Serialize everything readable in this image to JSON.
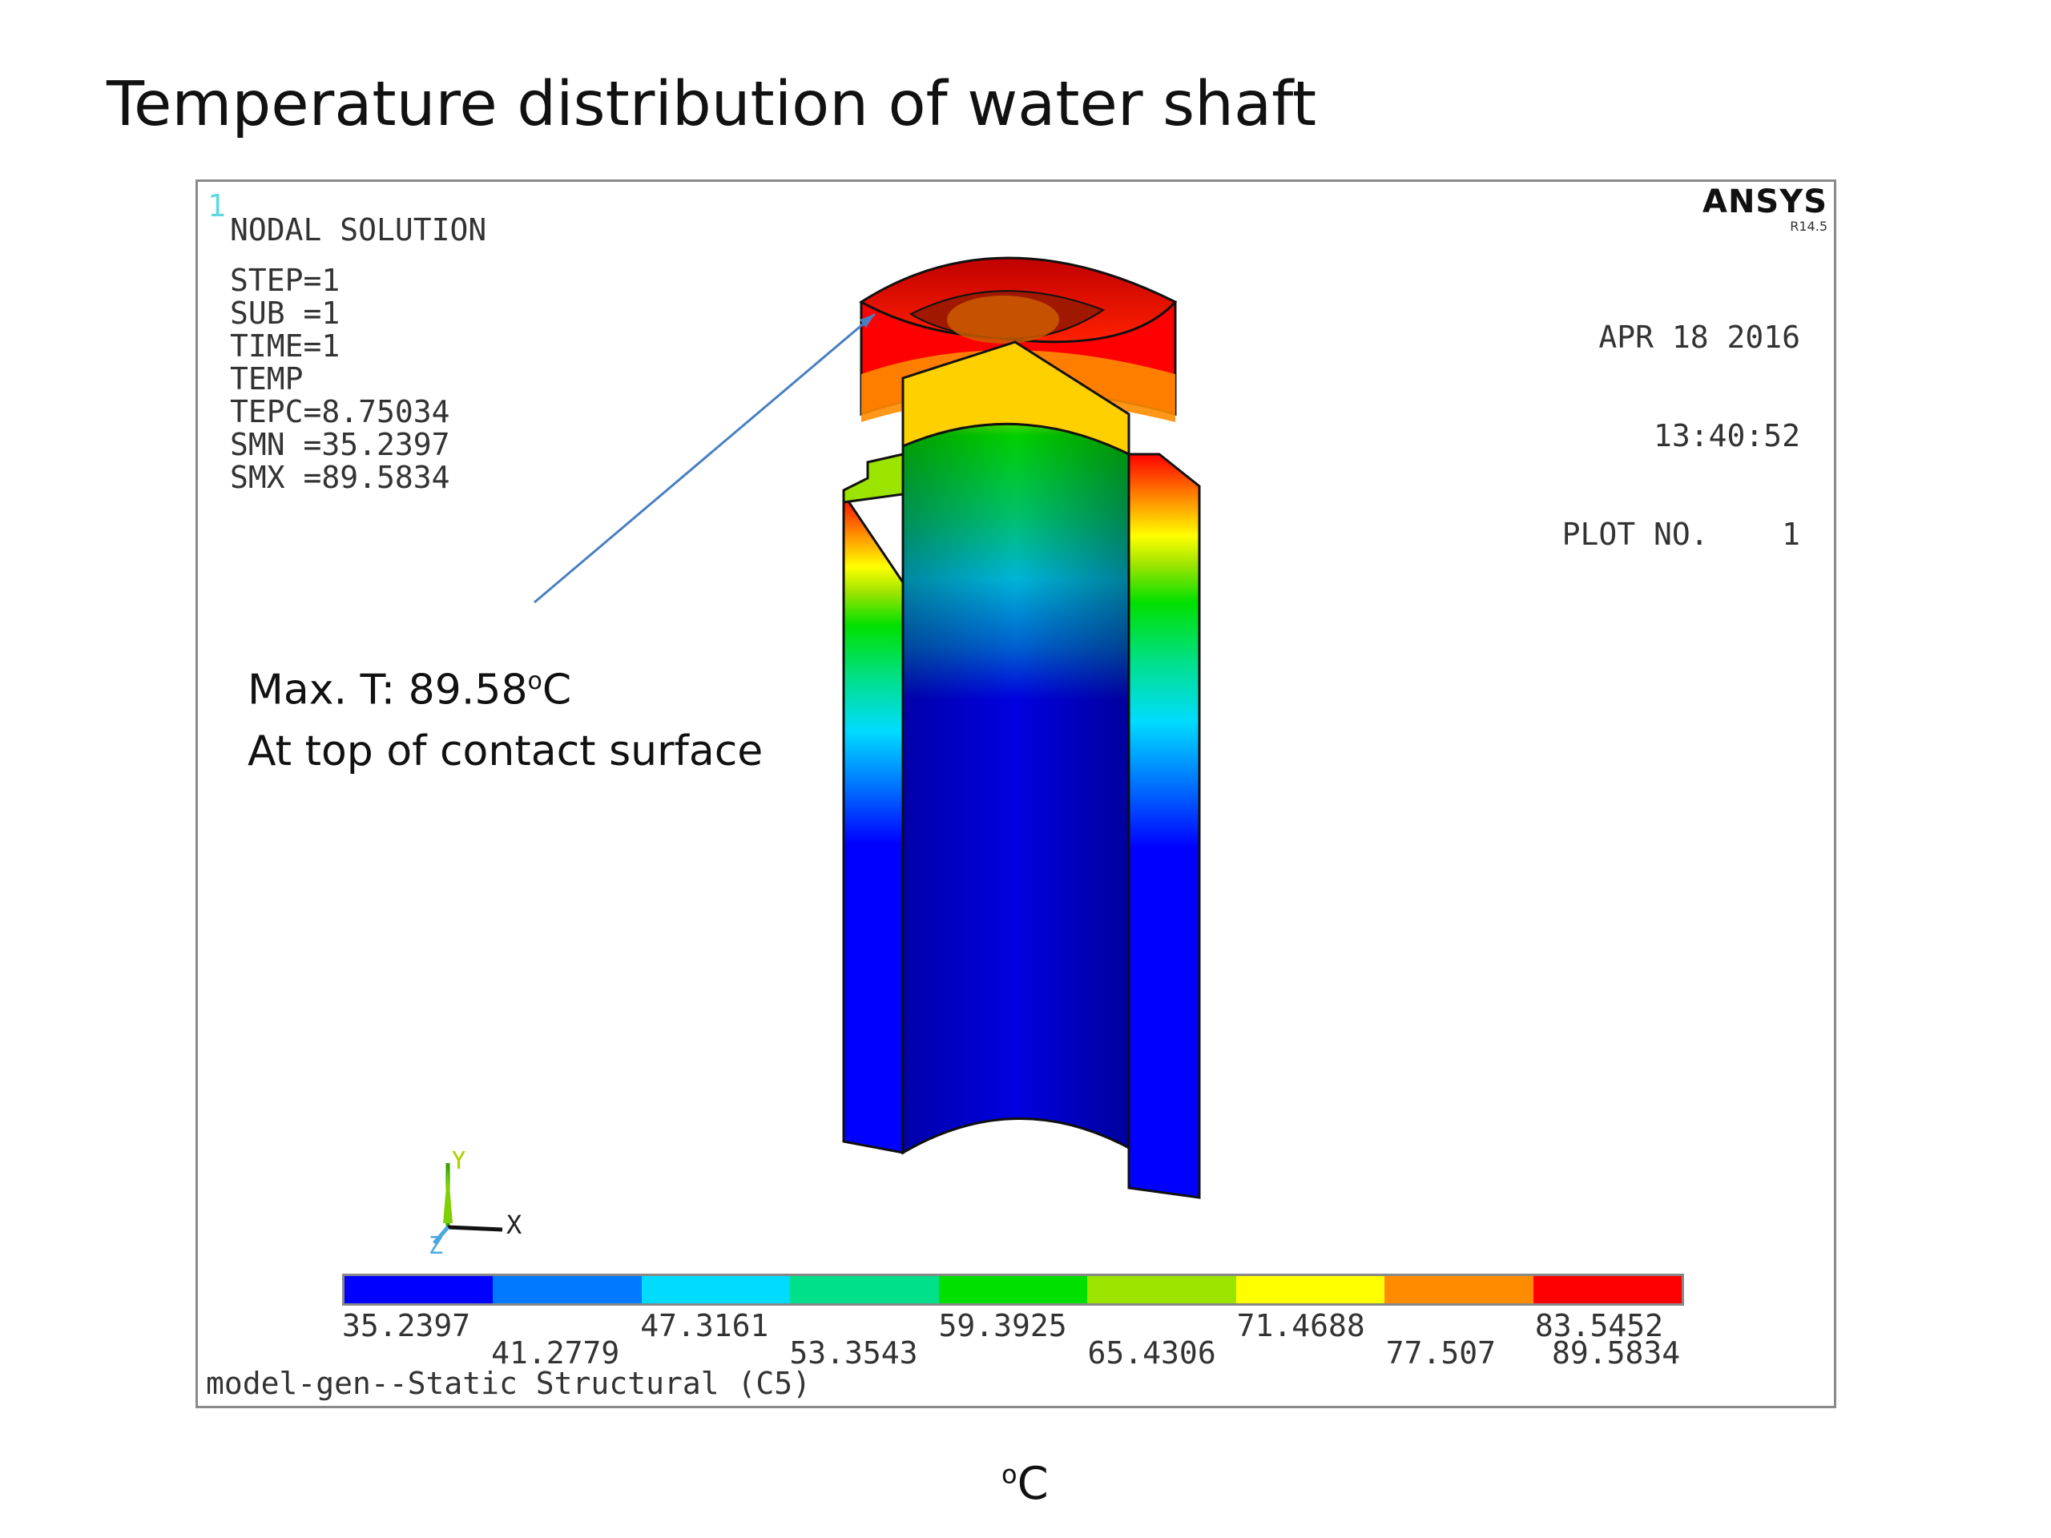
{
  "title": "Temperature distribution of water shaft",
  "plot": {
    "window_number": "1",
    "header": "NODAL SOLUTION",
    "info_lines": [
      "STEP=1",
      "SUB =1",
      "TIME=1",
      "TEMP",
      "TEPC=8.75034",
      "SMN =35.2397",
      "SMX =89.5834"
    ],
    "brand": "ANSYS",
    "version": "R14.5",
    "date": "APR 18 2016",
    "time": "13:40:52",
    "plot_label": "PLOT NO.",
    "plot_no": "1",
    "annotation_line1_prefix": "Max. T: 89.58",
    "annotation_line1_sup": "o",
    "annotation_line1_suffix": "C",
    "annotation_line2": "At top of contact surface",
    "axis_x": "X",
    "axis_y": "Y",
    "axis_z": "Z",
    "footer": "model-gen--Static Structural (C5)"
  },
  "colorbar": {
    "colors": [
      "#0000ff",
      "#0078ff",
      "#00dcff",
      "#00e08a",
      "#00e000",
      "#9ae400",
      "#ffff00",
      "#ff8c00",
      "#ff0000"
    ],
    "ticks_upper": [
      "35.2397",
      "47.3161",
      "59.3925",
      "71.4688",
      "83.5452"
    ],
    "ticks_lower": [
      "41.2779",
      "53.3543",
      "65.4306",
      "77.507",
      "89.5834"
    ]
  },
  "unit": {
    "sup": "o",
    "letter": "C"
  }
}
